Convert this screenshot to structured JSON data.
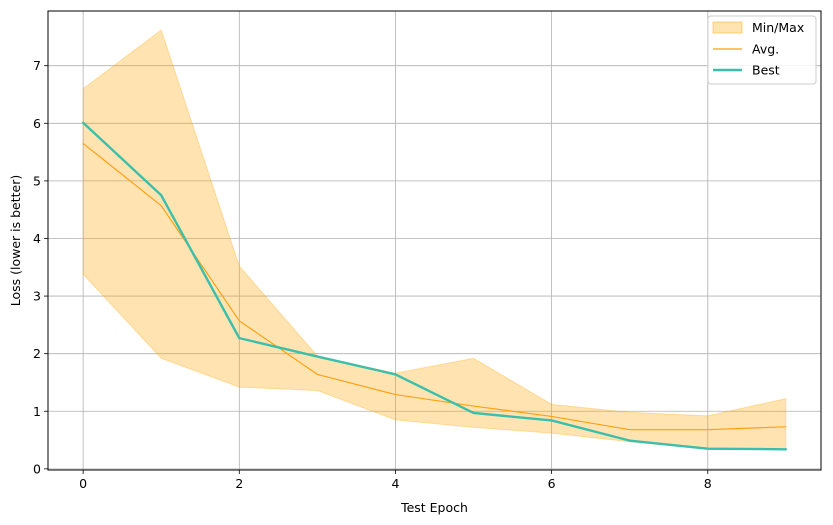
{
  "chart_data": {
    "type": "line",
    "title": "",
    "xlabel": "Test Epoch",
    "ylabel": "Loss (lower is better)",
    "x": [
      0,
      1,
      2,
      3,
      4,
      5,
      6,
      7,
      8,
      9
    ],
    "xlim": [
      -0.45,
      9.45
    ],
    "ylim": [
      -0.02,
      7.95
    ],
    "xticks": [
      0,
      2,
      4,
      6,
      8
    ],
    "yticks": [
      0,
      1,
      2,
      3,
      4,
      5,
      6,
      7
    ],
    "grid": true,
    "legend_position": "top-right",
    "band": {
      "name": "Min/Max",
      "color": "#ffa500",
      "opacity": 0.3,
      "min": [
        3.38,
        1.92,
        1.42,
        1.36,
        0.85,
        0.72,
        0.62,
        0.47,
        0.34,
        0.34
      ],
      "max": [
        6.6,
        7.62,
        3.52,
        1.96,
        1.66,
        1.92,
        1.12,
        0.98,
        0.92,
        1.22
      ]
    },
    "series": [
      {
        "name": "Avg.",
        "color": "#ffa012",
        "width": 1.2,
        "values": [
          5.65,
          4.57,
          2.57,
          1.64,
          1.29,
          1.09,
          0.91,
          0.68,
          0.68,
          0.73
        ]
      },
      {
        "name": "Best",
        "color": "#3cbfaa",
        "width": 2.4,
        "values": [
          6.01,
          4.75,
          2.27,
          1.95,
          1.64,
          0.97,
          0.84,
          0.49,
          0.35,
          0.34
        ]
      }
    ]
  }
}
